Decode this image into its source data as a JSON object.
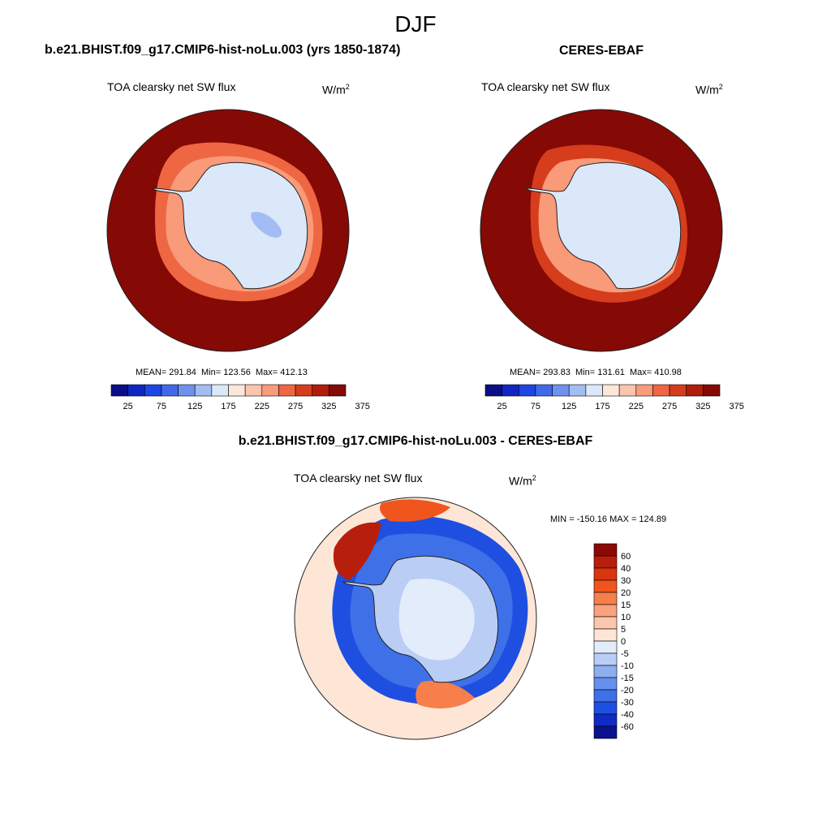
{
  "page": {
    "title": "DJF",
    "left_title": "b.e21.BHIST.f09_g17.CMIP6-hist-noLu.003 (yrs 1850-1874)",
    "right_title": "CERES-EBAF",
    "diff_title": "b.e21.BHIST.f09_g17.CMIP6-hist-noLu.003 - CERES-EBAF"
  },
  "chart_data": [
    {
      "type": "heatmap",
      "projection": "south-polar-stereographic",
      "panel": "model",
      "variable": "TOA clearsky net SW flux",
      "units_base": "W/m",
      "units_exp": "2",
      "stats_text": "MEAN= 291.84  Min= 123.56  Max= 412.13",
      "mean": 291.84,
      "min": 123.56,
      "max": 412.13,
      "colorbar": {
        "orientation": "horizontal",
        "levels": [
          25,
          75,
          125,
          175,
          225,
          275,
          325,
          375
        ],
        "tick_labels": [
          "25",
          "75",
          "125",
          "175",
          "225",
          "275",
          "325",
          "375"
        ],
        "colors": [
          "#0b0f86",
          "#0f27c2",
          "#1d46e3",
          "#3f69e9",
          "#6e90ee",
          "#a2bdf3",
          "#dbe8fa",
          "#fde7d9",
          "#fcc4ac",
          "#f99a78",
          "#ef6642",
          "#d63d1c",
          "#b01d0a",
          "#850905"
        ]
      },
      "regions": {
        "ocean_far": 390,
        "ocean_mid": 340,
        "ocean_near": 270,
        "coast": 230,
        "continent": 165,
        "plateau": 140
      }
    },
    {
      "type": "heatmap",
      "projection": "south-polar-stereographic",
      "panel": "observation",
      "variable": "TOA clearsky net SW flux",
      "units_base": "W/m",
      "units_exp": "2",
      "stats_text": "MEAN= 293.83  Min= 131.61  Max= 410.98",
      "mean": 293.83,
      "min": 131.61,
      "max": 410.98,
      "colorbar": {
        "orientation": "horizontal",
        "levels": [
          25,
          75,
          125,
          175,
          225,
          275,
          325,
          375
        ],
        "tick_labels": [
          "25",
          "75",
          "125",
          "175",
          "225",
          "275",
          "325",
          "375"
        ],
        "colors": [
          "#0b0f86",
          "#0f27c2",
          "#1d46e3",
          "#3f69e9",
          "#6e90ee",
          "#a2bdf3",
          "#dbe8fa",
          "#fde7d9",
          "#fcc4ac",
          "#f99a78",
          "#ef6642",
          "#d63d1c",
          "#b01d0a",
          "#850905"
        ]
      },
      "regions": {
        "ocean_far": 395,
        "ocean_mid": 350,
        "ocean_near": 290,
        "coast": 235,
        "continent": 160
      }
    },
    {
      "type": "heatmap",
      "projection": "south-polar-stereographic",
      "panel": "difference",
      "variable": "TOA clearsky net SW flux",
      "units_base": "W/m",
      "units_exp": "2",
      "stats_text": "MIN = -150.16 MAX = 124.89",
      "min": -150.16,
      "max": 124.89,
      "colorbar": {
        "orientation": "vertical",
        "levels": [
          60,
          40,
          30,
          20,
          15,
          10,
          5,
          0,
          -5,
          -10,
          -15,
          -20,
          -30,
          -40,
          -60
        ],
        "tick_labels": [
          "60",
          "40",
          "30",
          "20",
          "15",
          "10",
          "5",
          "0",
          "-5",
          "-10",
          "-15",
          "-20",
          "-30",
          "-40",
          "-60"
        ],
        "colors": [
          "#8b0a05",
          "#b71e0b",
          "#d9350f",
          "#f0551d",
          "#f67f4c",
          "#f9a27d",
          "#fcc6ad",
          "#fde6d6",
          "#e3ecfb",
          "#b9cdf5",
          "#8dafef",
          "#6590ec",
          "#3e70e8",
          "#1f4fe0",
          "#0f2bc4",
          "#0a128f"
        ]
      }
    }
  ]
}
